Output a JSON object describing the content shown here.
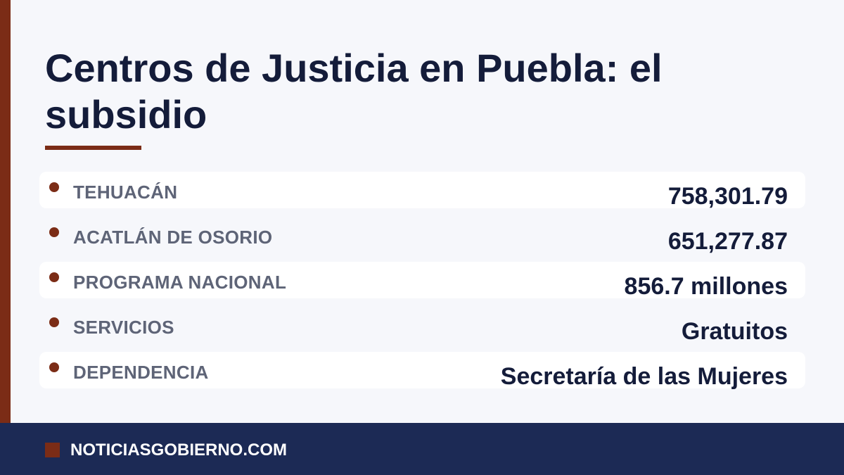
{
  "title": "Centros de Justicia en Puebla: el subsidio",
  "rows": [
    {
      "label": "TEHUACÁN",
      "value": "758,301.79"
    },
    {
      "label": "ACATLÁN DE OSORIO",
      "value": "651,277.87"
    },
    {
      "label": "PROGRAMA NACIONAL",
      "value": "856.7 millones"
    },
    {
      "label": "SERVICIOS",
      "value": "Gratuitos"
    },
    {
      "label": "DEPENDENCIA",
      "value": "Secretaría de las Mujeres"
    }
  ],
  "footer": {
    "site": "NOTICIASGOBIERNO.COM"
  },
  "colors": {
    "accent": "#7b2c16",
    "navy": "#1c2a55",
    "text": "#141c3a",
    "label": "#5e6477",
    "background": "#f6f7fb"
  }
}
